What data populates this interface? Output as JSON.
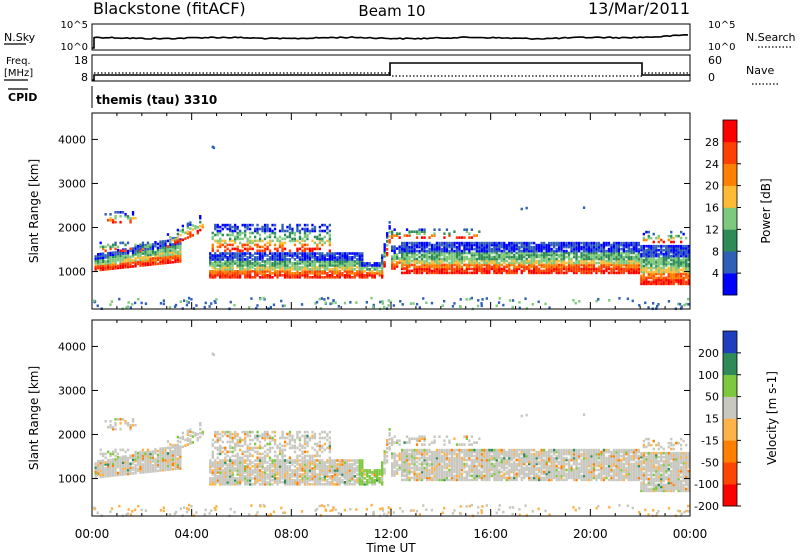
{
  "header": {
    "station": "Blackstone (fitACF)",
    "beam": "Beam 10",
    "date": "13/Mar/2011"
  },
  "top_panels": {
    "nsky_label": "N.Sky",
    "nsky_ticks": [
      "10^5",
      "10^0"
    ],
    "nsearch_label": "N.Search",
    "nsearch_ticks": [
      "10^5",
      "10^0"
    ],
    "freq_label": "Freq.",
    "freq_unit": "[MHz]",
    "freq_ticks": [
      "18",
      "8"
    ],
    "nave_label": "Nave",
    "nave_ticks": [
      "60",
      "0"
    ],
    "cpid_label": "CPID",
    "cpid_value": "themis (tau) 3310"
  },
  "chart_data": [
    {
      "type": "heatmap",
      "name": "power",
      "ylabel": "Slant Range [km]",
      "yticks": [
        "1000",
        "2000",
        "3000",
        "4000"
      ],
      "ylim": [
        150,
        4600
      ],
      "colorbar_label": "Power [dB]",
      "colorbar_ticks": [
        "4",
        "8",
        "12",
        "16",
        "20",
        "24",
        "28"
      ],
      "colors": [
        "#0000ff",
        "#2f5fb6",
        "#2e8b57",
        "#7dc97d",
        "#ffbb33",
        "#ff8000",
        "#ff4000",
        "#ff0000"
      ],
      "x": [
        "00:00",
        "04:00",
        "08:00",
        "12:00",
        "16:00",
        "20:00",
        "00:00"
      ]
    },
    {
      "type": "heatmap",
      "name": "velocity",
      "ylabel": "Slant Range [km]",
      "yticks": [
        "1000",
        "2000",
        "3000",
        "4000"
      ],
      "ylim": [
        150,
        4600
      ],
      "colorbar_label": "Velocity [m s-1]",
      "colorbar_ticks": [
        "200",
        "100",
        "50",
        "15",
        "-15",
        "-50",
        "-100",
        "-200"
      ],
      "colors": [
        "#1f3fbf",
        "#2e8b57",
        "#7dc93d",
        "#c8c8c0",
        "#ffb347",
        "#ff8000",
        "#ff4500",
        "#ff0000"
      ],
      "xlabel": "Time UT",
      "x": [
        "00:00",
        "04:00",
        "08:00",
        "12:00",
        "16:00",
        "20:00",
        "00:00"
      ]
    }
  ],
  "colors": {
    "ground_scatter": "#c8c8c0",
    "axis": "#000000"
  }
}
